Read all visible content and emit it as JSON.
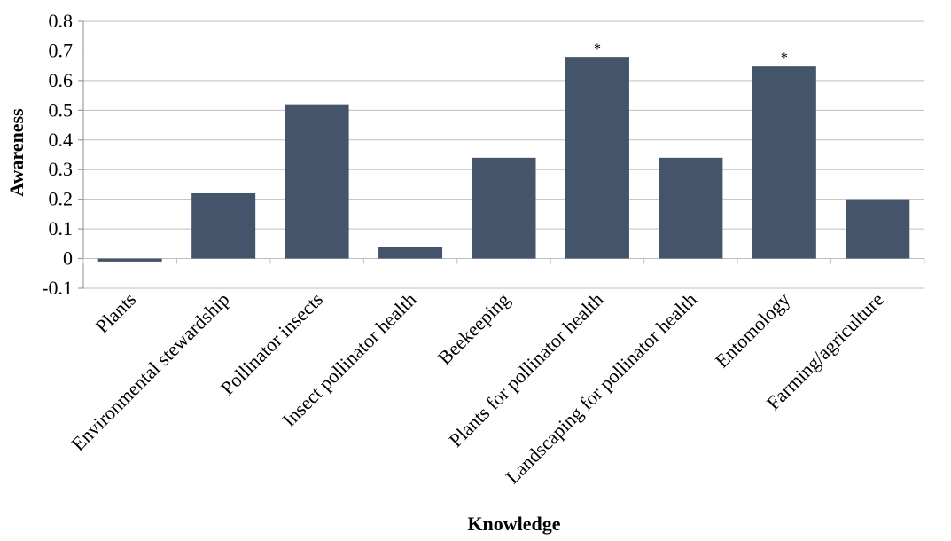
{
  "chart_data": {
    "type": "bar",
    "title": "",
    "xlabel": "Knowledge",
    "ylabel": "Awareness",
    "ylim": [
      -0.1,
      0.8
    ],
    "yticks": [
      -0.1,
      0,
      0.1,
      0.2,
      0.3,
      0.4,
      0.5,
      0.6,
      0.7,
      0.8
    ],
    "ytick_labels": [
      "-0.1",
      "0",
      "0.1",
      "0.2",
      "0.3",
      "0.4",
      "0.5",
      "0.6",
      "0.7",
      "0.8"
    ],
    "grid": true,
    "legend": "none",
    "bar_color": "#44546a",
    "grid_color": "#bfbfbf",
    "categories": [
      "Plants",
      "Environmental stewardship",
      "Pollinator insects",
      "Insect pollinator health",
      "Beekeeping",
      "Plants for pollinator health",
      "Landscaping for pollinator health",
      "Entomology",
      "Farming/agriculture"
    ],
    "values": [
      -0.01,
      0.22,
      0.52,
      0.04,
      0.34,
      0.68,
      0.34,
      0.65,
      0.2
    ],
    "annotations": [
      {
        "category_index": 5,
        "text": "*"
      },
      {
        "category_index": 7,
        "text": "*"
      }
    ]
  }
}
